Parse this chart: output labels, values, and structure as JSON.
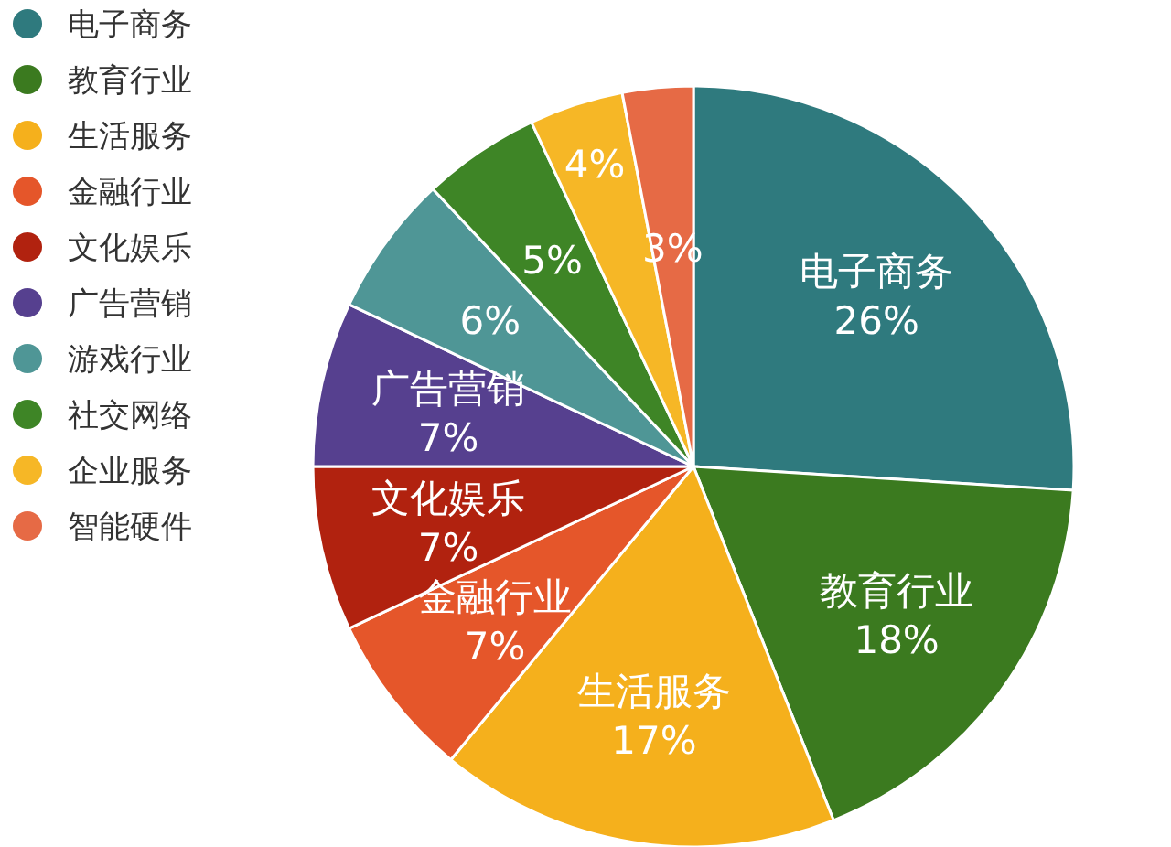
{
  "chart_data": {
    "type": "pie",
    "categories": [
      "电子商务",
      "教育行业",
      "生活服务",
      "金融行业",
      "文化娱乐",
      "广告营销",
      "游戏行业",
      "社交网络",
      "企业服务",
      "智能硬件"
    ],
    "values": [
      26,
      18,
      17,
      7,
      7,
      7,
      6,
      5,
      4,
      3
    ],
    "colors": [
      "#2f7a7e",
      "#3b7a1f",
      "#f5b01c",
      "#e5562a",
      "#b1220f",
      "#56408f",
      "#4f9696",
      "#3e8526",
      "#f6b726",
      "#e66a45"
    ],
    "value_labels": [
      "电子商务\n26%",
      "教育行业\n18%",
      "生活服务\n17%",
      "金融行业\n7%",
      "文化娱乐\n7%",
      "广告营销\n7%",
      "6%",
      "5%",
      "4%",
      "3%"
    ],
    "legend": "top left"
  }
}
